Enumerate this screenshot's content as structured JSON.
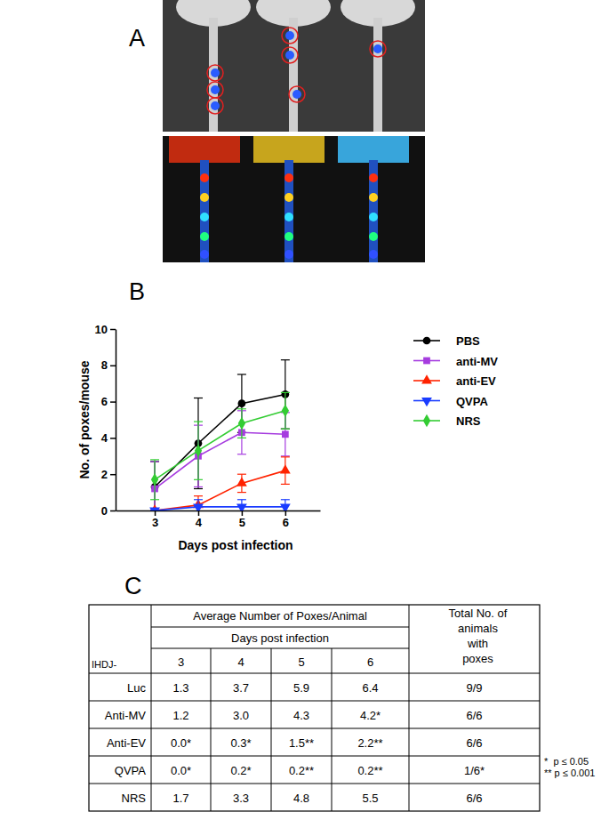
{
  "panel_labels": {
    "a": "A",
    "b": "B",
    "c": "C"
  },
  "chart_data": {
    "type": "line",
    "xlabel": "Days post infection",
    "ylabel": "No. of poxes/mouse",
    "x": [
      3,
      4,
      5,
      6
    ],
    "xlim": [
      2.1,
      6.8
    ],
    "xticks": [
      3,
      4,
      5,
      6
    ],
    "ylim": [
      0,
      10
    ],
    "yticks": [
      0,
      2,
      4,
      6,
      8,
      10
    ],
    "legend": "right",
    "series": [
      {
        "name": "PBS",
        "color": "#000000",
        "marker": "circle",
        "values": [
          1.3,
          3.7,
          5.9,
          6.4
        ],
        "errors": [
          1.4,
          2.5,
          1.6,
          1.9
        ]
      },
      {
        "name": "anti-MV",
        "color": "#a63cdf",
        "marker": "square",
        "values": [
          1.2,
          3.0,
          4.3,
          4.2
        ],
        "errors": [
          1.5,
          1.7,
          1.2,
          1.2
        ]
      },
      {
        "name": "anti-EV",
        "color": "#ff2200",
        "marker": "triangle",
        "values": [
          0.0,
          0.3,
          1.5,
          2.2
        ],
        "errors": [
          0.0,
          0.5,
          0.5,
          0.75
        ]
      },
      {
        "name": "QVPA",
        "color": "#1a3cff",
        "marker": "triangle-down",
        "values": [
          0.0,
          0.2,
          0.2,
          0.2
        ],
        "errors": [
          0.0,
          0.4,
          0.4,
          0.4
        ]
      },
      {
        "name": "NRS",
        "color": "#33cc33",
        "marker": "diamond",
        "values": [
          1.7,
          3.3,
          4.8,
          5.5
        ],
        "errors": [
          1.1,
          1.6,
          0.8,
          1.0
        ]
      }
    ]
  },
  "table": {
    "group_header": "Average Number of Poxes/Animal",
    "subheader": "Days post infection",
    "corner": "IHDJ-",
    "columns": [
      "3",
      "4",
      "5",
      "6"
    ],
    "total_header": [
      "Total No. of",
      "animals",
      "with",
      "poxes"
    ],
    "rows": [
      [
        "Luc",
        "1.3",
        "3.7",
        "5.9",
        "6.4",
        "9/9"
      ],
      [
        "Anti-MV",
        "1.2",
        "3.0",
        "4.3",
        "4.2*",
        "6/6"
      ],
      [
        "Anti-EV",
        "0.0*",
        "0.3*",
        "1.5**",
        "2.2**",
        "6/6"
      ],
      [
        "QVPA",
        "0.0*",
        "0.2*",
        "0.2**",
        "0.2**",
        "1/6*"
      ],
      [
        "NRS",
        "1.7",
        "3.3",
        "4.8",
        "5.5",
        "6/6"
      ]
    ],
    "footnotes": [
      "*  p ≤ 0.05",
      "** p ≤ 0.001"
    ]
  }
}
